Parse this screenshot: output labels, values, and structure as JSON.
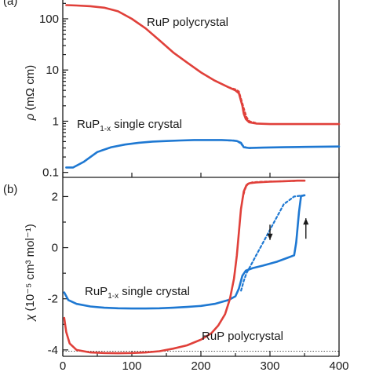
{
  "chart_data": [
    {
      "type": "line",
      "panel_label": "(a)",
      "ylabel_sym": "ρ",
      "ylabel_unit": "(mΩ cm)",
      "yscale": "log",
      "xlim": [
        0,
        400
      ],
      "ylim": [
        0.08,
        250
      ],
      "y_ticks": [
        0.1,
        1,
        10,
        100
      ],
      "y_tick_labels": [
        "0.1",
        "1",
        "10",
        "100"
      ],
      "colors": {
        "polycrystal": "#e0403a",
        "single_crystal": "#1e78d2"
      },
      "annotations": [
        {
          "id": "poly",
          "text": "RuP polycrystal",
          "x": 130,
          "y": 140
        },
        {
          "id": "single",
          "base": "RuP",
          "sub": "1-x",
          "rest": " single crystal"
        }
      ],
      "series": [
        {
          "id": "poly-solid",
          "color_key": "polycrystal",
          "dashed": false,
          "x": [
            5,
            20,
            40,
            60,
            80,
            100,
            120,
            140,
            160,
            180,
            200,
            220,
            240,
            250,
            255,
            260,
            262,
            265,
            270,
            280,
            300,
            350,
            400
          ],
          "y": [
            185,
            182,
            176,
            165,
            140,
            100,
            65,
            38,
            22,
            14,
            9,
            6.2,
            4.6,
            4.0,
            3.5,
            2.0,
            1.4,
            1.1,
            0.95,
            0.9,
            0.88,
            0.88,
            0.88
          ]
        },
        {
          "id": "poly-dashed",
          "color_key": "polycrystal",
          "dashed": true,
          "x": [
            240,
            250,
            255,
            258,
            262,
            266,
            270,
            280
          ],
          "y": [
            4.6,
            4.2,
            3.8,
            2.8,
            1.8,
            1.2,
            1.0,
            0.92
          ]
        },
        {
          "id": "single-solid",
          "color_key": "single_crystal",
          "dashed": false,
          "x": [
            5,
            15,
            30,
            50,
            70,
            90,
            110,
            130,
            150,
            170,
            190,
            210,
            230,
            245,
            252,
            258,
            262,
            270,
            290,
            320,
            350,
            400
          ],
          "y": [
            0.125,
            0.125,
            0.16,
            0.25,
            0.31,
            0.35,
            0.38,
            0.4,
            0.41,
            0.42,
            0.43,
            0.43,
            0.43,
            0.42,
            0.41,
            0.38,
            0.31,
            0.3,
            0.305,
            0.31,
            0.315,
            0.32
          ]
        },
        {
          "id": "single-dashed",
          "color_key": "single_crystal",
          "dashed": true,
          "x": [
            240,
            248,
            254,
            258,
            262,
            266,
            272
          ],
          "y": [
            0.42,
            0.42,
            0.4,
            0.36,
            0.32,
            0.305,
            0.3
          ]
        }
      ]
    },
    {
      "type": "line",
      "panel_label": "(b)",
      "ylabel_sym": "χ",
      "ylabel_unit": "(10⁻⁵ cm³ mol⁻¹)",
      "xlim": [
        0,
        400
      ],
      "ylim": [
        -4.25,
        2.75
      ],
      "y_ticks": [
        -4,
        -2,
        0,
        2
      ],
      "y_tick_labels": [
        "-4",
        "-2",
        "0",
        "2"
      ],
      "x_ticks": [
        0,
        100,
        200,
        300,
        400
      ],
      "x_tick_labels": [
        "0",
        "100",
        "200",
        "300",
        "400"
      ],
      "baseline_y": -4.05,
      "colors": {
        "polycrystal": "#e0403a",
        "single_crystal": "#1e78d2"
      },
      "annotations": [
        {
          "id": "single",
          "base": "RuP",
          "sub": "1-x",
          "rest": " single crystal"
        },
        {
          "id": "poly",
          "text": "RuP polycrystal"
        }
      ],
      "arrows": [
        {
          "direction": "down",
          "x": 300,
          "y_from": 0.9,
          "y_to": 0.3
        },
        {
          "direction": "up",
          "x": 352,
          "y_from": 0.35,
          "y_to": 1.15
        }
      ],
      "series": [
        {
          "id": "single-heat",
          "color_key": "single_crystal",
          "dashed": false,
          "x": [
            2,
            8,
            20,
            40,
            60,
            80,
            100,
            120,
            140,
            160,
            180,
            200,
            220,
            240,
            250,
            255,
            260,
            265,
            275,
            290,
            310,
            325,
            335,
            338,
            342,
            345,
            350
          ],
          "y": [
            -1.75,
            -2.05,
            -2.2,
            -2.3,
            -2.35,
            -2.37,
            -2.38,
            -2.38,
            -2.37,
            -2.35,
            -2.32,
            -2.28,
            -2.2,
            -2.05,
            -1.9,
            -1.6,
            -1.1,
            -0.9,
            -0.8,
            -0.7,
            -0.55,
            -0.4,
            -0.3,
            0.2,
            1.4,
            2.02,
            2.05
          ]
        },
        {
          "id": "single-cool",
          "color_key": "single_crystal",
          "dashed": true,
          "x": [
            350,
            335,
            320,
            310,
            300,
            290,
            280,
            272,
            266,
            262,
            258
          ],
          "y": [
            2.05,
            2.0,
            1.7,
            1.2,
            0.7,
            0.2,
            -0.3,
            -0.7,
            -1.0,
            -1.3,
            -1.7
          ]
        },
        {
          "id": "poly-heat",
          "color_key": "polycrystal",
          "dashed": false,
          "x": [
            2,
            5,
            10,
            20,
            40,
            60,
            80,
            100,
            120,
            140,
            160,
            180,
            200,
            215,
            225,
            235,
            242,
            248,
            252,
            255,
            258,
            262,
            266,
            270,
            280,
            300,
            320,
            340,
            350
          ],
          "y": [
            -2.75,
            -3.3,
            -3.75,
            -4.0,
            -4.1,
            -4.12,
            -4.13,
            -4.12,
            -4.1,
            -4.05,
            -3.95,
            -3.82,
            -3.6,
            -3.35,
            -3.05,
            -2.6,
            -2.0,
            -1.2,
            -0.3,
            0.6,
            1.5,
            2.2,
            2.45,
            2.52,
            2.55,
            2.58,
            2.6,
            2.62,
            2.62
          ]
        },
        {
          "id": "poly-cool",
          "color_key": "polycrystal",
          "dashed": true,
          "x": [
            350,
            320,
            290,
            275,
            268,
            264,
            260
          ],
          "y": [
            2.62,
            2.6,
            2.58,
            2.56,
            2.5,
            2.3,
            1.9
          ]
        }
      ]
    }
  ]
}
